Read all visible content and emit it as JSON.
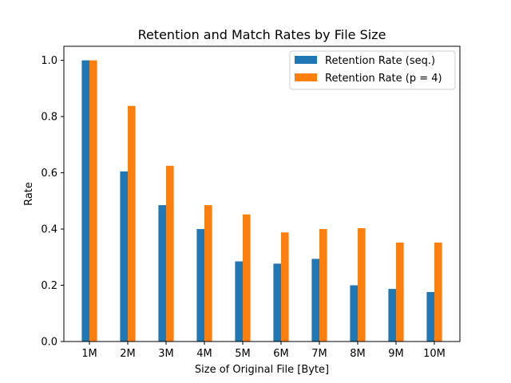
{
  "chart_data": {
    "type": "bar",
    "title": "Retention and Match Rates by File Size",
    "xlabel": "Size of Original File [Byte]",
    "ylabel": "Rate",
    "categories": [
      "1M",
      "2M",
      "3M",
      "4M",
      "5M",
      "6M",
      "7M",
      "8M",
      "9M",
      "10M"
    ],
    "series": [
      {
        "name": "Retention Rate (seq.)",
        "color": "#1f77b4",
        "values": [
          1.0,
          0.605,
          0.485,
          0.4,
          0.285,
          0.277,
          0.294,
          0.2,
          0.187,
          0.176
        ]
      },
      {
        "name": "Retention Rate (p = 4)",
        "color": "#ff7f0e",
        "values": [
          1.0,
          0.838,
          0.625,
          0.485,
          0.452,
          0.388,
          0.4,
          0.403,
          0.352,
          0.352
        ]
      }
    ],
    "ylim": [
      0,
      1.05
    ],
    "yticks": [
      "0.0",
      "0.2",
      "0.4",
      "0.6",
      "0.8",
      "1.0"
    ],
    "grid": false,
    "legend_position": "top-right"
  }
}
